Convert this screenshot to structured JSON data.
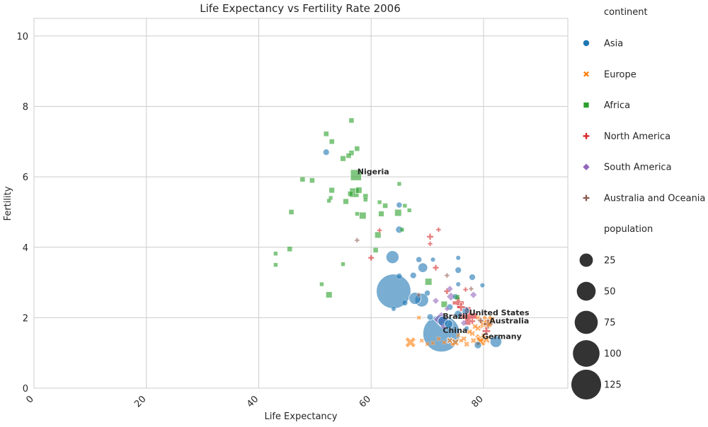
{
  "chart_data": {
    "type": "scatter",
    "title": "Life Expectancy vs Fertility Rate 2006",
    "xlabel": "Life Expectancy",
    "ylabel": "Fertility",
    "xlim": [
      0,
      95
    ],
    "ylim": [
      0,
      10.5
    ],
    "x_ticks": [
      0,
      20,
      40,
      60,
      80
    ],
    "y_ticks": [
      0,
      2,
      4,
      6,
      8,
      10
    ],
    "grid": true,
    "legend_position": "right",
    "hue_title": "continent",
    "size_title": "population",
    "continents": [
      {
        "name": "Asia",
        "color": "#1f77b4",
        "marker": "circle"
      },
      {
        "name": "Europe",
        "color": "#ff7f0e",
        "marker": "x"
      },
      {
        "name": "Africa",
        "color": "#2ca02c",
        "marker": "square"
      },
      {
        "name": "North America",
        "color": "#d62728",
        "marker": "plus"
      },
      {
        "name": "South America",
        "color": "#9467bd",
        "marker": "diamond"
      },
      {
        "name": "Australia and Oceania",
        "color": "#8c564b",
        "marker": "plus"
      }
    ],
    "size_legend": [
      25,
      50,
      75,
      100,
      125
    ],
    "points": [
      {
        "x": 72.5,
        "y": 1.55,
        "c": "Asia",
        "s": 131,
        "label": "China"
      },
      {
        "x": 64.0,
        "y": 2.75,
        "c": "Asia",
        "s": 115
      },
      {
        "x": 63.8,
        "y": 3.72,
        "c": "Asia",
        "s": 16
      },
      {
        "x": 67.8,
        "y": 2.55,
        "c": "Asia",
        "s": 14
      },
      {
        "x": 69.0,
        "y": 2.5,
        "c": "Asia",
        "s": 18
      },
      {
        "x": 69.2,
        "y": 3.42,
        "c": "Asia",
        "s": 9
      },
      {
        "x": 82.2,
        "y": 1.32,
        "c": "Asia",
        "s": 13
      },
      {
        "x": 72.8,
        "y": 1.9,
        "c": "Asia",
        "s": 10
      },
      {
        "x": 73.8,
        "y": 1.82,
        "c": "Asia",
        "s": 7
      },
      {
        "x": 75.5,
        "y": 2.1,
        "c": "Asia",
        "s": 6
      },
      {
        "x": 74.0,
        "y": 2.3,
        "c": "Asia",
        "s": 4
      },
      {
        "x": 76.8,
        "y": 2.2,
        "c": "Asia",
        "s": 6
      },
      {
        "x": 75.0,
        "y": 2.6,
        "c": "Asia",
        "s": 3
      },
      {
        "x": 75.5,
        "y": 2.95,
        "c": "Asia",
        "s": 2
      },
      {
        "x": 75.5,
        "y": 3.35,
        "c": "Asia",
        "s": 4
      },
      {
        "x": 78.0,
        "y": 3.15,
        "c": "Asia",
        "s": 4
      },
      {
        "x": 75.5,
        "y": 3.7,
        "c": "Asia",
        "s": 2
      },
      {
        "x": 79.0,
        "y": 1.22,
        "c": "Asia",
        "s": 5
      },
      {
        "x": 77.0,
        "y": 1.7,
        "c": "Asia",
        "s": 2
      },
      {
        "x": 79.8,
        "y": 2.92,
        "c": "Asia",
        "s": 2
      },
      {
        "x": 65.0,
        "y": 4.5,
        "c": "Asia",
        "s": 5
      },
      {
        "x": 65.0,
        "y": 5.2,
        "c": "Asia",
        "s": 3
      },
      {
        "x": 52.0,
        "y": 6.7,
        "c": "Asia",
        "s": 4
      },
      {
        "x": 65.0,
        "y": 3.18,
        "c": "Asia",
        "s": 3
      },
      {
        "x": 66.0,
        "y": 2.42,
        "c": "Asia",
        "s": 3
      },
      {
        "x": 67.5,
        "y": 3.2,
        "c": "Asia",
        "s": 4
      },
      {
        "x": 68.5,
        "y": 3.65,
        "c": "Asia",
        "s": 3
      },
      {
        "x": 70.0,
        "y": 2.7,
        "c": "Asia",
        "s": 3
      },
      {
        "x": 70.5,
        "y": 2.02,
        "c": "Asia",
        "s": 4
      },
      {
        "x": 71.0,
        "y": 3.65,
        "c": "Asia",
        "s": 2
      },
      {
        "x": 64.0,
        "y": 2.25,
        "c": "Asia",
        "s": 2
      },
      {
        "x": 57.0,
        "y": 5.55,
        "c": "Africa",
        "s": 11
      },
      {
        "x": 57.3,
        "y": 6.05,
        "c": "Africa",
        "s": 15,
        "label": "Nigeria"
      },
      {
        "x": 52.5,
        "y": 2.65,
        "c": "Africa",
        "s": 5
      },
      {
        "x": 56.5,
        "y": 7.6,
        "c": "Africa",
        "s": 3
      },
      {
        "x": 52.0,
        "y": 7.22,
        "c": "Africa",
        "s": 3
      },
      {
        "x": 53.0,
        "y": 7.0,
        "c": "Africa",
        "s": 3
      },
      {
        "x": 57.5,
        "y": 6.8,
        "c": "Africa",
        "s": 3
      },
      {
        "x": 56.5,
        "y": 6.68,
        "c": "Africa",
        "s": 3
      },
      {
        "x": 55.0,
        "y": 6.52,
        "c": "Africa",
        "s": 4
      },
      {
        "x": 56.0,
        "y": 6.6,
        "c": "Africa",
        "s": 3
      },
      {
        "x": 47.8,
        "y": 5.93,
        "c": "Africa",
        "s": 3
      },
      {
        "x": 49.5,
        "y": 5.9,
        "c": "Africa",
        "s": 3
      },
      {
        "x": 53.0,
        "y": 5.62,
        "c": "Africa",
        "s": 4
      },
      {
        "x": 57.8,
        "y": 5.62,
        "c": "Africa",
        "s": 5
      },
      {
        "x": 56.3,
        "y": 5.52,
        "c": "Africa",
        "s": 3
      },
      {
        "x": 59.0,
        "y": 5.45,
        "c": "Africa",
        "s": 3
      },
      {
        "x": 52.8,
        "y": 5.4,
        "c": "Africa",
        "s": 2
      },
      {
        "x": 52.5,
        "y": 5.32,
        "c": "Africa",
        "s": 2
      },
      {
        "x": 55.5,
        "y": 5.3,
        "c": "Africa",
        "s": 4
      },
      {
        "x": 59.0,
        "y": 5.35,
        "c": "Africa",
        "s": 2
      },
      {
        "x": 61.5,
        "y": 5.28,
        "c": "Africa",
        "s": 2
      },
      {
        "x": 62.5,
        "y": 5.18,
        "c": "Africa",
        "s": 3
      },
      {
        "x": 66.0,
        "y": 5.18,
        "c": "Africa",
        "s": 2
      },
      {
        "x": 65.0,
        "y": 5.8,
        "c": "Africa",
        "s": 2
      },
      {
        "x": 45.8,
        "y": 5.0,
        "c": "Africa",
        "s": 3
      },
      {
        "x": 57.5,
        "y": 4.95,
        "c": "Africa",
        "s": 2
      },
      {
        "x": 58.5,
        "y": 4.9,
        "c": "Africa",
        "s": 6
      },
      {
        "x": 61.8,
        "y": 4.95,
        "c": "Africa",
        "s": 4
      },
      {
        "x": 64.8,
        "y": 4.98,
        "c": "Africa",
        "s": 6
      },
      {
        "x": 66.8,
        "y": 5.05,
        "c": "Africa",
        "s": 2
      },
      {
        "x": 65.5,
        "y": 4.5,
        "c": "Africa",
        "s": 2
      },
      {
        "x": 61.2,
        "y": 4.35,
        "c": "Africa",
        "s": 5
      },
      {
        "x": 60.8,
        "y": 3.92,
        "c": "Africa",
        "s": 3
      },
      {
        "x": 45.5,
        "y": 3.95,
        "c": "Africa",
        "s": 3
      },
      {
        "x": 43.0,
        "y": 3.82,
        "c": "Africa",
        "s": 2
      },
      {
        "x": 43.0,
        "y": 3.5,
        "c": "Africa",
        "s": 2
      },
      {
        "x": 55.0,
        "y": 3.52,
        "c": "Africa",
        "s": 2
      },
      {
        "x": 51.2,
        "y": 2.95,
        "c": "Africa",
        "s": 2
      },
      {
        "x": 70.2,
        "y": 3.02,
        "c": "Africa",
        "s": 6
      },
      {
        "x": 73.0,
        "y": 2.38,
        "c": "Africa",
        "s": 5
      },
      {
        "x": 75.3,
        "y": 2.58,
        "c": "Africa",
        "s": 3
      },
      {
        "x": 77.2,
        "y": 2.05,
        "c": "North America",
        "s": 30,
        "label": "United States"
      },
      {
        "x": 75.5,
        "y": 2.42,
        "c": "North America",
        "s": 12
      },
      {
        "x": 76.0,
        "y": 2.3,
        "c": "North America",
        "s": 6
      },
      {
        "x": 80.5,
        "y": 1.62,
        "c": "North America",
        "s": 6
      },
      {
        "x": 70.5,
        "y": 4.3,
        "c": "North America",
        "s": 4
      },
      {
        "x": 72.0,
        "y": 4.5,
        "c": "North America",
        "s": 2
      },
      {
        "x": 70.5,
        "y": 4.1,
        "c": "North America",
        "s": 2
      },
      {
        "x": 60.0,
        "y": 3.7,
        "c": "North America",
        "s": 3
      },
      {
        "x": 71.5,
        "y": 3.42,
        "c": "North America",
        "s": 3
      },
      {
        "x": 73.5,
        "y": 2.75,
        "c": "North America",
        "s": 3
      },
      {
        "x": 76.8,
        "y": 2.8,
        "c": "North America",
        "s": 2
      },
      {
        "x": 78.0,
        "y": 1.9,
        "c": "North America",
        "s": 3
      },
      {
        "x": 61.5,
        "y": 4.48,
        "c": "North America",
        "s": 2
      },
      {
        "x": 72.5,
        "y": 1.95,
        "c": "South America",
        "s": 18,
        "label": "Brazil"
      },
      {
        "x": 74.2,
        "y": 2.6,
        "c": "South America",
        "s": 6
      },
      {
        "x": 78.2,
        "y": 2.65,
        "c": "South America",
        "s": 4
      },
      {
        "x": 74.0,
        "y": 2.82,
        "c": "South America",
        "s": 3
      },
      {
        "x": 71.5,
        "y": 2.48,
        "c": "South America",
        "s": 3
      },
      {
        "x": 73.5,
        "y": 2.25,
        "c": "South America",
        "s": 2
      },
      {
        "x": 72.8,
        "y": 1.75,
        "c": "South America",
        "s": 2
      },
      {
        "x": 76.5,
        "y": 1.85,
        "c": "South America",
        "s": 3
      },
      {
        "x": 80.8,
        "y": 1.82,
        "c": "Australia and Oceania",
        "s": 8,
        "label": "Australia"
      },
      {
        "x": 79.5,
        "y": 1.92,
        "c": "Australia and Oceania",
        "s": 3
      },
      {
        "x": 73.5,
        "y": 3.2,
        "c": "Australia and Oceania",
        "s": 2
      },
      {
        "x": 57.5,
        "y": 4.2,
        "c": "Australia and Oceania",
        "s": 2
      },
      {
        "x": 68.5,
        "y": 2.65,
        "c": "Australia and Oceania",
        "s": 2
      },
      {
        "x": 77.8,
        "y": 2.82,
        "c": "Australia and Oceania",
        "s": 2
      },
      {
        "x": 79.5,
        "y": 1.38,
        "c": "Europe",
        "s": 14,
        "label": "Germany"
      },
      {
        "x": 80.7,
        "y": 1.92,
        "c": "Europe",
        "s": 12
      },
      {
        "x": 80.0,
        "y": 1.82,
        "c": "Europe",
        "s": 11
      },
      {
        "x": 79.5,
        "y": 1.33,
        "c": "Europe",
        "s": 10
      },
      {
        "x": 67.0,
        "y": 1.3,
        "c": "Europe",
        "s": 12
      },
      {
        "x": 80.5,
        "y": 1.38,
        "c": "Europe",
        "s": 6
      },
      {
        "x": 75.0,
        "y": 1.3,
        "c": "Europe",
        "s": 6
      },
      {
        "x": 74.0,
        "y": 1.35,
        "c": "Europe",
        "s": 4
      },
      {
        "x": 76.5,
        "y": 1.4,
        "c": "Europe",
        "s": 3
      },
      {
        "x": 78.2,
        "y": 1.35,
        "c": "Europe",
        "s": 3
      },
      {
        "x": 77.0,
        "y": 1.25,
        "c": "Europe",
        "s": 3
      },
      {
        "x": 73.0,
        "y": 1.3,
        "c": "Europe",
        "s": 2
      },
      {
        "x": 71.0,
        "y": 1.28,
        "c": "Europe",
        "s": 2
      },
      {
        "x": 69.0,
        "y": 1.35,
        "c": "Europe",
        "s": 2
      },
      {
        "x": 68.5,
        "y": 2.0,
        "c": "Europe",
        "s": 2
      },
      {
        "x": 78.0,
        "y": 1.55,
        "c": "Europe",
        "s": 3
      },
      {
        "x": 79.0,
        "y": 1.7,
        "c": "Europe",
        "s": 4
      },
      {
        "x": 81.0,
        "y": 1.8,
        "c": "Europe",
        "s": 3
      },
      {
        "x": 77.5,
        "y": 1.6,
        "c": "Europe",
        "s": 3
      },
      {
        "x": 81.5,
        "y": 1.95,
        "c": "Europe",
        "s": 3
      },
      {
        "x": 78.5,
        "y": 1.75,
        "c": "Europe",
        "s": 3
      },
      {
        "x": 72.0,
        "y": 1.4,
        "c": "Europe",
        "s": 2
      },
      {
        "x": 75.5,
        "y": 1.5,
        "c": "Europe",
        "s": 2
      },
      {
        "x": 74.5,
        "y": 1.25,
        "c": "Europe",
        "s": 2
      },
      {
        "x": 70.0,
        "y": 1.25,
        "c": "Europe",
        "s": 2
      },
      {
        "x": 76.0,
        "y": 1.35,
        "c": "Europe",
        "s": 2
      },
      {
        "x": 80.0,
        "y": 1.5,
        "c": "Europe",
        "s": 2
      },
      {
        "x": 79.0,
        "y": 2.0,
        "c": "Europe",
        "s": 2
      }
    ]
  }
}
